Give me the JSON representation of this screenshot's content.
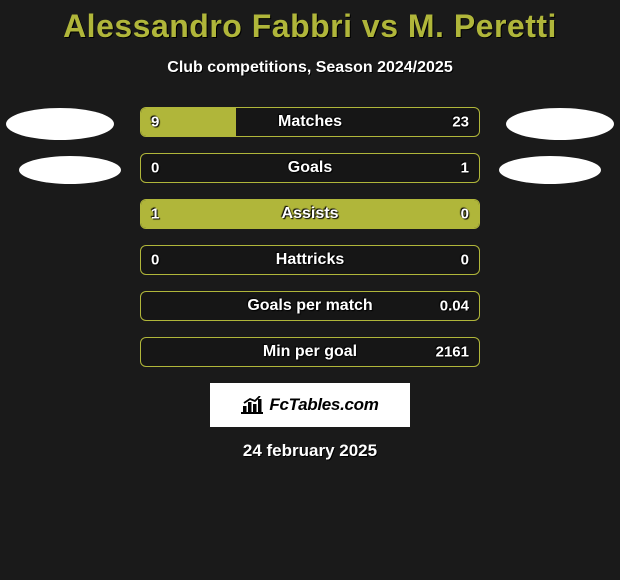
{
  "title": "Alessandro Fabbri vs M. Peretti",
  "subtitle": "Club competitions, Season 2024/2025",
  "date": "24 february 2025",
  "watermark_text": "FcTables.com",
  "colors": {
    "accent": "#b0b63a",
    "background": "#1a1a1a",
    "text": "#ffffff",
    "ellipse": "#ffffff",
    "watermark_bg": "#ffffff",
    "watermark_text": "#000000"
  },
  "bars": [
    {
      "label": "Matches",
      "left_value": "9",
      "right_value": "23",
      "left_pct": 28.1,
      "right_pct": 0
    },
    {
      "label": "Goals",
      "left_value": "0",
      "right_value": "1",
      "left_pct": 0,
      "right_pct": 0
    },
    {
      "label": "Assists",
      "left_value": "1",
      "right_value": "0",
      "left_pct": 100,
      "right_pct": 0
    },
    {
      "label": "Hattricks",
      "left_value": "0",
      "right_value": "0",
      "left_pct": 0,
      "right_pct": 0
    },
    {
      "label": "Goals per match",
      "left_value": "",
      "right_value": "0.04",
      "left_pct": 0,
      "right_pct": 0
    },
    {
      "label": "Min per goal",
      "left_value": "",
      "right_value": "2161",
      "left_pct": 0,
      "right_pct": 0
    }
  ]
}
